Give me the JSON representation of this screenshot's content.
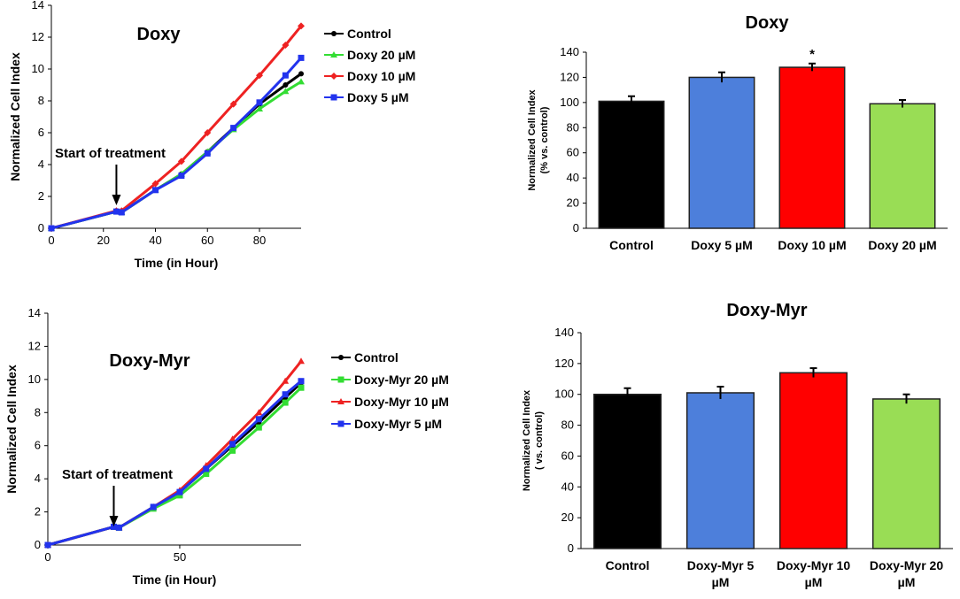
{
  "chart_data": [
    {
      "type": "line",
      "title": "Doxy",
      "xlabel": "Time (in Hour)",
      "ylabel": "Normalized Cell Index",
      "xlim": [
        0,
        96
      ],
      "ylim": [
        0,
        14
      ],
      "xticks": [
        0,
        20,
        40,
        60,
        80
      ],
      "yticks": [
        0,
        2,
        4,
        6,
        8,
        10,
        12,
        14
      ],
      "annotation": "Start of treatment",
      "annotation_x": 25,
      "series": [
        {
          "name": "Control",
          "color": "#000000",
          "marker": "circle",
          "x": [
            0,
            25,
            27,
            40,
            50,
            60,
            70,
            80,
            90,
            96
          ],
          "y": [
            0,
            1.05,
            1.0,
            2.4,
            3.4,
            4.8,
            6.3,
            7.8,
            9.0,
            9.7
          ]
        },
        {
          "name": "Doxy 20 µM",
          "color": "#33dd33",
          "marker": "triangle",
          "x": [
            0,
            25,
            27,
            40,
            50,
            60,
            70,
            80,
            90,
            96
          ],
          "y": [
            0,
            1.05,
            1.0,
            2.4,
            3.4,
            4.8,
            6.2,
            7.5,
            8.6,
            9.2
          ]
        },
        {
          "name": "Doxy 10 µM",
          "color": "#ee2222",
          "marker": "diamond",
          "x": [
            0,
            25,
            27,
            40,
            50,
            60,
            70,
            80,
            90,
            96
          ],
          "y": [
            0,
            1.1,
            1.1,
            2.8,
            4.2,
            6.0,
            7.8,
            9.6,
            11.5,
            12.7
          ]
        },
        {
          "name": "Doxy 5 µM",
          "color": "#2233ee",
          "marker": "square",
          "x": [
            0,
            25,
            27,
            40,
            50,
            60,
            70,
            80,
            90,
            96
          ],
          "y": [
            0,
            1.05,
            1.0,
            2.4,
            3.3,
            4.7,
            6.3,
            7.9,
            9.6,
            10.7
          ]
        }
      ]
    },
    {
      "type": "bar",
      "title": "Doxy",
      "ylabel_line1": "Normalized Cell Index",
      "ylabel_line2": "(% vs. control)",
      "ylim": [
        0,
        140
      ],
      "yticks": [
        0,
        20,
        40,
        60,
        80,
        100,
        120,
        140
      ],
      "categories": [
        "Control",
        "Doxy 5 µM",
        "Doxy 10 µM",
        "Doxy 20 µM"
      ],
      "values": [
        101,
        120,
        128,
        99
      ],
      "errors": [
        4,
        4,
        3,
        3
      ],
      "colors": [
        "#000000",
        "#4d7fdb",
        "#ff0000",
        "#99dd55"
      ],
      "significance": [
        "",
        "",
        "*",
        ""
      ]
    },
    {
      "type": "line",
      "title": "Doxy-Myr",
      "xlabel": "Time (in Hour)",
      "ylabel": "Normalized Cell Index",
      "xlim": [
        0,
        96
      ],
      "ylim": [
        0,
        14
      ],
      "xticks": [
        0,
        50
      ],
      "yticks": [
        0,
        2,
        4,
        6,
        8,
        10,
        12,
        14
      ],
      "annotation": "Start of treatment",
      "annotation_x": 25,
      "series": [
        {
          "name": "Control",
          "color": "#000000",
          "marker": "circle",
          "x": [
            0,
            25,
            27,
            40,
            50,
            60,
            70,
            80,
            90,
            96
          ],
          "y": [
            0,
            1.1,
            1.05,
            2.3,
            3.2,
            4.6,
            6.0,
            7.4,
            8.9,
            9.8
          ]
        },
        {
          "name": "Doxy-Myr 20 µM",
          "color": "#33dd33",
          "marker": "square",
          "x": [
            0,
            25,
            27,
            40,
            50,
            60,
            70,
            80,
            90,
            96
          ],
          "y": [
            0,
            1.1,
            1.05,
            2.2,
            3.0,
            4.3,
            5.7,
            7.1,
            8.6,
            9.5
          ]
        },
        {
          "name": "Doxy-Myr 10 µM",
          "color": "#ee2222",
          "marker": "triangle",
          "x": [
            0,
            25,
            27,
            40,
            50,
            60,
            70,
            80,
            90,
            96
          ],
          "y": [
            0,
            1.1,
            1.05,
            2.3,
            3.3,
            4.8,
            6.4,
            8.0,
            9.9,
            11.1
          ]
        },
        {
          "name": "Doxy-Myr 5 µM",
          "color": "#2233ee",
          "marker": "square",
          "x": [
            0,
            25,
            27,
            40,
            50,
            60,
            70,
            80,
            90,
            96
          ],
          "y": [
            0,
            1.1,
            1.05,
            2.3,
            3.2,
            4.6,
            6.1,
            7.6,
            9.1,
            9.9
          ]
        }
      ]
    },
    {
      "type": "bar",
      "title": "Doxy-Myr",
      "ylabel_line1": "Normalized Cell Index",
      "ylabel_line2": "( vs. control)",
      "ylim": [
        0,
        140
      ],
      "yticks": [
        0,
        20,
        40,
        60,
        80,
        100,
        120,
        140
      ],
      "categories": [
        "Control",
        "Doxy-Myr 5 µM",
        "Doxy-Myr 10 µM",
        "Doxy-Myr 20 µM"
      ],
      "category_lines": [
        [
          "Control"
        ],
        [
          "Doxy-Myr 5",
          "µM"
        ],
        [
          "Doxy-Myr 10",
          "µM"
        ],
        [
          "Doxy-Myr 20",
          "µM"
        ]
      ],
      "values": [
        100,
        101,
        114,
        97
      ],
      "errors": [
        4,
        4,
        3,
        3
      ],
      "colors": [
        "#000000",
        "#4d7fdb",
        "#ff0000",
        "#99dd55"
      ],
      "significance": [
        "",
        "",
        "",
        ""
      ]
    }
  ]
}
